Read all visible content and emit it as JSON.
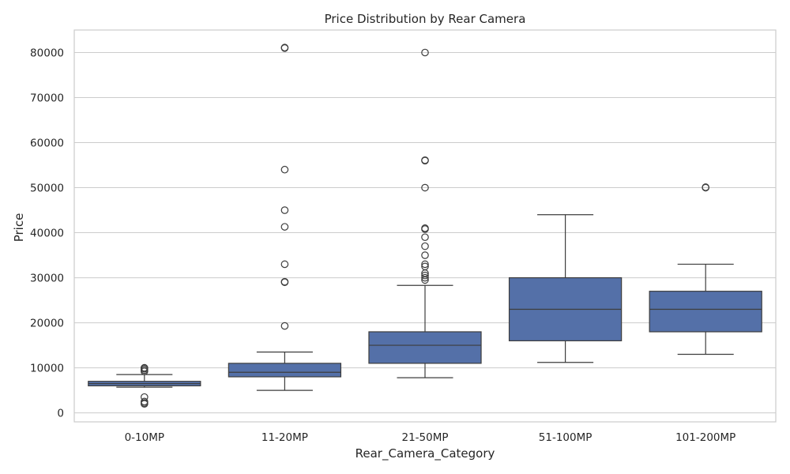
{
  "chart_data": {
    "type": "box",
    "title": "Price Distribution by Rear Camera",
    "xlabel": "Rear_Camera_Category",
    "ylabel": "Price",
    "ylim": [
      -2000,
      85000
    ],
    "yticks": [
      0,
      10000,
      20000,
      30000,
      40000,
      50000,
      60000,
      70000,
      80000
    ],
    "ytick_labels": [
      "0",
      "10000",
      "20000",
      "30000",
      "40000",
      "50000",
      "60000",
      "70000",
      "80000"
    ],
    "grid": true,
    "box_color": "#5470a8",
    "categories": [
      "0-10MP",
      "11-20MP",
      "21-50MP",
      "51-100MP",
      "101-200MP"
    ],
    "boxes": [
      {
        "category": "0-10MP",
        "whisker_low": 5700,
        "q1": 6000,
        "median": 6500,
        "q3": 7000,
        "whisker_high": 8500,
        "fliers": [
          9500,
          9800,
          10000,
          9200,
          3500,
          2500,
          2200,
          2000
        ]
      },
      {
        "category": "11-20MP",
        "whisker_low": 5000,
        "q1": 8000,
        "median": 9000,
        "q3": 11000,
        "whisker_high": 13500,
        "fliers": [
          19300,
          29000,
          29100,
          33000,
          41300,
          45000,
          54000,
          81000,
          81100
        ]
      },
      {
        "category": "21-50MP",
        "whisker_low": 7800,
        "q1": 11000,
        "median": 15000,
        "q3": 18000,
        "whisker_high": 28300,
        "fliers": [
          29500,
          30000,
          30500,
          31000,
          32500,
          33000,
          35000,
          37000,
          39000,
          40800,
          41000,
          50000,
          56000,
          56100,
          80000
        ]
      },
      {
        "category": "51-100MP",
        "whisker_low": 11200,
        "q1": 16000,
        "median": 23000,
        "q3": 30000,
        "whisker_high": 44000,
        "fliers": []
      },
      {
        "category": "101-200MP",
        "whisker_low": 13000,
        "q1": 18000,
        "median": 23000,
        "q3": 27000,
        "whisker_high": 33000,
        "fliers": [
          50000,
          50100
        ]
      }
    ]
  }
}
